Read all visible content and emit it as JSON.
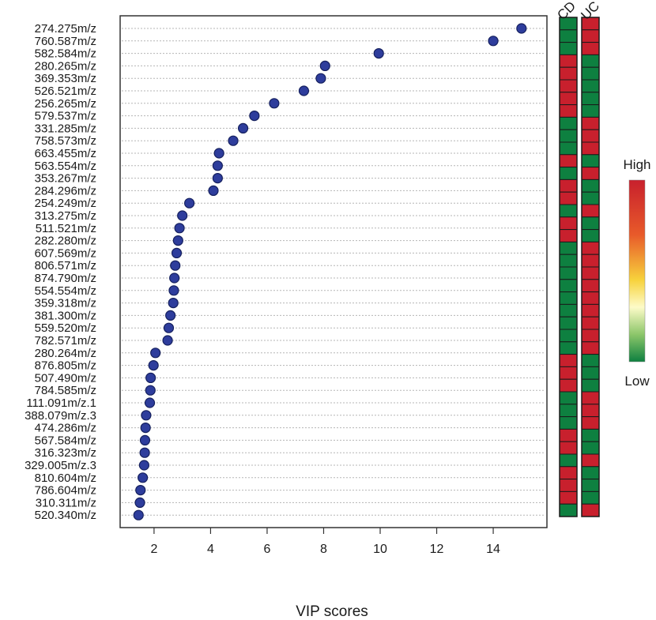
{
  "chart_data": {
    "type": "scatter",
    "title": "",
    "xlabel": "VIP scores",
    "ylabel": "",
    "xlim": [
      0.8,
      15.9
    ],
    "xticks": [
      2,
      4,
      6,
      8,
      10,
      12,
      14
    ],
    "x_tick_labels": [
      "2",
      "4",
      "6",
      "8",
      "10",
      "12",
      "14"
    ],
    "grid": "horizontal-dotted",
    "marker_color": "#2e3d9c",
    "categories": [
      "274.275m/z",
      "760.587m/z",
      "582.584m/z",
      "280.265m/z",
      "369.353m/z",
      "526.521m/z",
      "256.265m/z",
      "579.537m/z",
      "331.285m/z",
      "758.573m/z",
      "663.455m/z",
      "563.554m/z",
      "353.267m/z",
      "284.296m/z",
      "254.249m/z",
      "313.275m/z",
      "511.521m/z",
      "282.280m/z",
      "607.569m/z",
      "806.571m/z",
      "874.790m/z",
      "554.554m/z",
      "359.318m/z",
      "381.300m/z",
      "559.520m/z",
      "782.571m/z",
      "280.264m/z",
      "876.805m/z",
      "507.490m/z",
      "784.585m/z",
      "111.091m/z.1",
      "388.079m/z.3",
      "474.286m/z",
      "567.584m/z",
      "316.323m/z",
      "329.005m/z.3",
      "810.604m/z",
      "786.604m/z",
      "310.311m/z",
      "520.340m/z"
    ],
    "values": [
      15.0,
      14.0,
      9.95,
      8.05,
      7.9,
      7.3,
      6.25,
      5.55,
      5.15,
      4.8,
      4.3,
      4.25,
      4.25,
      4.1,
      3.25,
      3.0,
      2.9,
      2.85,
      2.8,
      2.75,
      2.72,
      2.7,
      2.68,
      2.58,
      2.52,
      2.48,
      2.05,
      1.98,
      1.88,
      1.87,
      1.85,
      1.72,
      1.7,
      1.68,
      1.67,
      1.65,
      1.6,
      1.52,
      1.5,
      1.45
    ],
    "heatmap": {
      "columns": [
        "CD",
        "UC"
      ],
      "colors": {
        "high": "#c8202d",
        "low": "#0e8040"
      },
      "levels_CD": [
        "low",
        "low",
        "low",
        "high",
        "high",
        "high",
        "high",
        "high",
        "low",
        "low",
        "low",
        "high",
        "low",
        "high",
        "high",
        "low",
        "high",
        "high",
        "low",
        "low",
        "low",
        "low",
        "low",
        "low",
        "low",
        "low",
        "low",
        "high",
        "high",
        "high",
        "low",
        "low",
        "low",
        "high",
        "high",
        "low",
        "high",
        "high",
        "high",
        "low"
      ],
      "levels_UC": [
        "high",
        "high",
        "high",
        "low",
        "low",
        "low",
        "low",
        "low",
        "high",
        "high",
        "high",
        "low",
        "high",
        "low",
        "low",
        "high",
        "low",
        "low",
        "high",
        "high",
        "high",
        "high",
        "high",
        "high",
        "high",
        "high",
        "high",
        "low",
        "low",
        "low",
        "high",
        "high",
        "high",
        "low",
        "low",
        "high",
        "low",
        "low",
        "low",
        "high"
      ]
    },
    "legend": {
      "high_label": "High",
      "low_label": "Low",
      "gradient": [
        "#c8202d",
        "#e85a2a",
        "#f7d23c",
        "#fdfbc8",
        "#8cc66a",
        "#0e8040"
      ]
    }
  }
}
